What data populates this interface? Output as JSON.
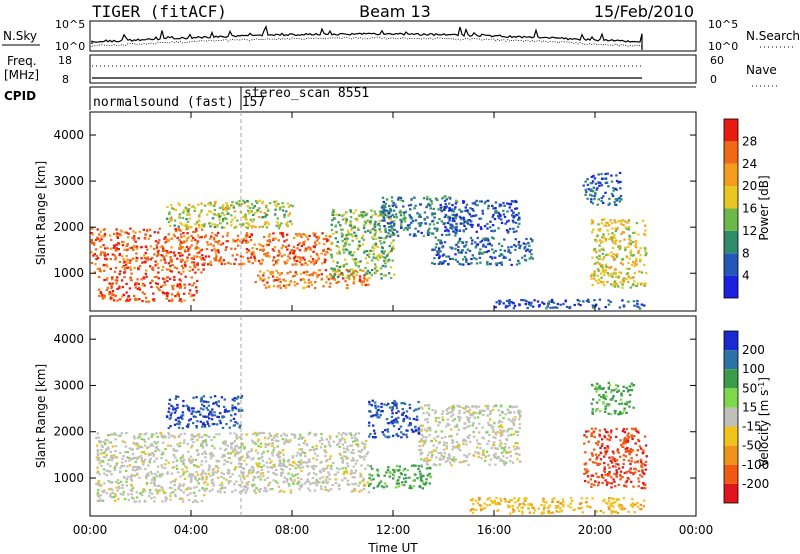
{
  "header": {
    "title": "TIGER (fitACF)",
    "beam": "Beam 13",
    "date": "15/Feb/2010"
  },
  "noise_panel": {
    "left_label": "N.Sky",
    "left_ticks": [
      "10^5",
      "10^0"
    ],
    "right_label": "N.Search",
    "right_ticks": [
      "10^5",
      "10^0"
    ]
  },
  "freq_panel": {
    "left_label_1": "Freq.",
    "left_label_2": "[MHz]",
    "left_ticks": [
      "18",
      "8"
    ],
    "right_label": "Nave",
    "right_ticks": [
      "60",
      "0"
    ]
  },
  "cpid": {
    "label": "CPID",
    "programs": [
      "normalsound (fast) 157",
      "stereo_scan 8551"
    ],
    "change_time_hours": 6.0
  },
  "chart_data": [
    {
      "type": "heatmap",
      "name": "power",
      "xlabel": "Time UT",
      "ylabel": "Slant Range [km]",
      "xlim": [
        0,
        24
      ],
      "ylim": [
        180,
        4500
      ],
      "x_ticks": [
        "00:00",
        "04:00",
        "08:00",
        "12:00",
        "16:00",
        "20:00",
        "00:00"
      ],
      "y_ticks": [
        1000,
        2000,
        3000,
        4000
      ],
      "colorbar_label": "Power [dB]",
      "colorbar_ticks": [
        4,
        8,
        12,
        16,
        20,
        24,
        28
      ],
      "colorbar_range": [
        0,
        32
      ],
      "regions": [
        {
          "t": [
            0.0,
            4.5
          ],
          "r": [
            1000,
            2000
          ],
          "level": 27
        },
        {
          "t": [
            0.3,
            4.2
          ],
          "r": [
            400,
            950
          ],
          "level": 28
        },
        {
          "t": [
            4.5,
            9.5
          ],
          "r": [
            1200,
            1900
          ],
          "level": 26
        },
        {
          "t": [
            3.0,
            8.0
          ],
          "r": [
            2000,
            2600
          ],
          "level": 16
        },
        {
          "t": [
            6.5,
            11.0
          ],
          "r": [
            700,
            1100
          ],
          "level": 24
        },
        {
          "t": [
            9.5,
            12.0
          ],
          "r": [
            900,
            2400
          ],
          "level": 14
        },
        {
          "t": [
            11.5,
            14.5
          ],
          "r": [
            1800,
            2700
          ],
          "level": 8
        },
        {
          "t": [
            13.5,
            17.5
          ],
          "r": [
            1200,
            1800
          ],
          "level": 7
        },
        {
          "t": [
            14.0,
            17.0
          ],
          "r": [
            1900,
            2600
          ],
          "level": 5
        },
        {
          "t": [
            16.0,
            22.0
          ],
          "r": [
            250,
            450
          ],
          "level": 5
        },
        {
          "t": [
            19.8,
            22.0
          ],
          "r": [
            700,
            2200
          ],
          "level": 18
        },
        {
          "t": [
            19.5,
            21.0
          ],
          "r": [
            2500,
            3200
          ],
          "level": 6
        }
      ]
    },
    {
      "type": "heatmap",
      "name": "velocity",
      "xlabel": "Time UT",
      "ylabel": "Slant Range [km]",
      "xlim": [
        0,
        24
      ],
      "ylim": [
        180,
        4500
      ],
      "x_ticks": [
        "00:00",
        "04:00",
        "08:00",
        "12:00",
        "16:00",
        "20:00",
        "00:00"
      ],
      "y_ticks": [
        1000,
        2000,
        3000,
        4000
      ],
      "colorbar_label": "Velocity [m s^-1]",
      "colorbar_ticks": [
        200,
        100,
        50,
        15,
        -15,
        -50,
        -100,
        -200
      ],
      "regions": [
        {
          "t": [
            0.2,
            4.5
          ],
          "r": [
            500,
            2000
          ],
          "v": 0
        },
        {
          "t": [
            4.5,
            11.0
          ],
          "r": [
            700,
            2000
          ],
          "v": 0
        },
        {
          "t": [
            3.0,
            6.0
          ],
          "r": [
            2100,
            2800
          ],
          "v": 150
        },
        {
          "t": [
            11.0,
            13.0
          ],
          "r": [
            1900,
            2700
          ],
          "v": 150
        },
        {
          "t": [
            11.0,
            13.5
          ],
          "r": [
            800,
            1300
          ],
          "v": 40
        },
        {
          "t": [
            13.0,
            17.0
          ],
          "r": [
            1300,
            2600
          ],
          "v": 0
        },
        {
          "t": [
            15.0,
            22.0
          ],
          "r": [
            250,
            600
          ],
          "v": -40
        },
        {
          "t": [
            19.5,
            22.0
          ],
          "r": [
            800,
            2100
          ],
          "v": -180
        },
        {
          "t": [
            19.8,
            21.5
          ],
          "r": [
            2400,
            3100
          ],
          "v": 40
        }
      ]
    }
  ]
}
